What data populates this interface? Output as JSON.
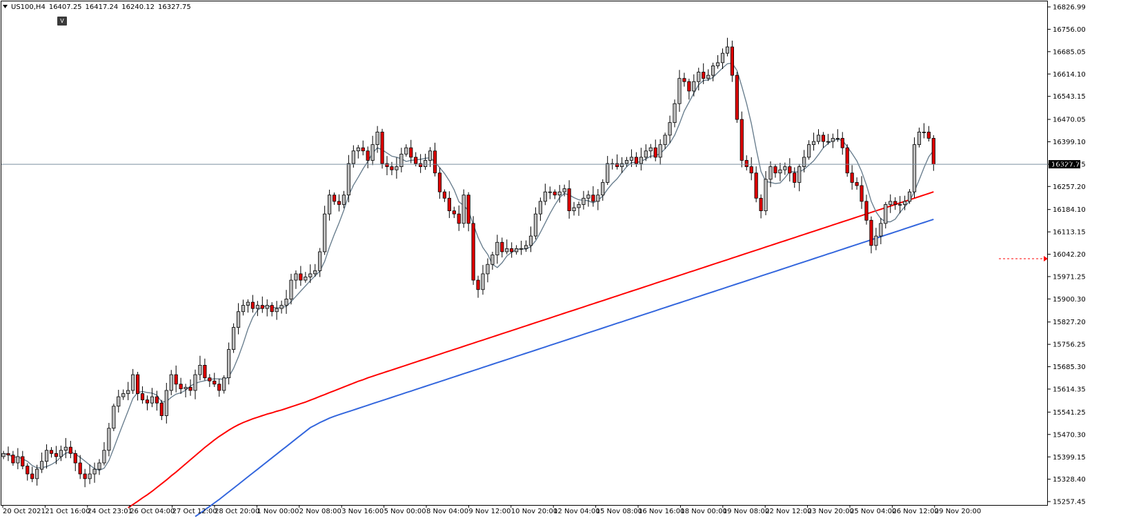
{
  "chart_data": {
    "type": "candlestick",
    "symbol_header": "US100,H4",
    "ohlc_header": {
      "open": "16407.25",
      "high": "16417.24",
      "low": "16240.12",
      "close": "16327.75"
    },
    "current_price_label": "16327.75",
    "v_badge": "V",
    "ylim": [
      15257.45,
      16826.99
    ],
    "y_ticks": [
      "16826.99",
      "16756.00",
      "16685.05",
      "16614.10",
      "16543.15",
      "16470.05",
      "16399.10",
      "16327.75",
      "16257.20",
      "16184.10",
      "16113.15",
      "16042.20",
      "15971.25",
      "15900.30",
      "15827.20",
      "15756.25",
      "15685.30",
      "15614.35",
      "15541.25",
      "15470.30",
      "15399.15",
      "15328.40",
      "15257.45"
    ],
    "x_ticks": [
      "20 Oct 2021",
      "21 Oct 16:00",
      "24 Oct 23:01",
      "26 Oct 04:00",
      "27 Oct 12:00",
      "28 Oct 20:00",
      "1 Nov 00:00",
      "2 Nov 08:00",
      "3 Nov 16:00",
      "5 Nov 00:00",
      "8 Nov 04:00",
      "9 Nov 12:00",
      "10 Nov 20:00",
      "12 Nov 04:00",
      "15 Nov 08:00",
      "16 Nov 16:00",
      "18 Nov 00:00",
      "19 Nov 08:00",
      "22 Nov 12:00",
      "23 Nov 20:00",
      "25 Nov 04:00",
      "26 Nov 12:00",
      "29 Nov 20:00"
    ],
    "closes": [
      15410,
      15405,
      15380,
      15400,
      15370,
      15345,
      15330,
      15360,
      15385,
      15420,
      15410,
      15400,
      15420,
      15430,
      15410,
      15380,
      15345,
      15330,
      15345,
      15360,
      15380,
      15420,
      15490,
      15560,
      15590,
      15600,
      15610,
      15660,
      15600,
      15580,
      15570,
      15590,
      15570,
      15530,
      15610,
      15660,
      15630,
      15615,
      15620,
      15610,
      15660,
      15690,
      15650,
      15640,
      15630,
      15610,
      15650,
      15740,
      15810,
      15860,
      15880,
      15890,
      15870,
      15880,
      15870,
      15880,
      15860,
      15870,
      15880,
      15900,
      15960,
      15980,
      15960,
      15970,
      15980,
      15990,
      16050,
      16170,
      16230,
      16210,
      16200,
      16230,
      16330,
      16370,
      16380,
      16370,
      16340,
      16390,
      16430,
      16330,
      16320,
      16310,
      16320,
      16360,
      16380,
      16350,
      16330,
      16320,
      16340,
      16370,
      16300,
      16240,
      16220,
      16180,
      16170,
      16140,
      16230,
      16140,
      15960,
      15930,
      15980,
      16010,
      16040,
      16080,
      16050,
      16060,
      16050,
      16060,
      16060,
      16070,
      16100,
      16170,
      16210,
      16240,
      16240,
      16230,
      16240,
      16250,
      16180,
      16190,
      16200,
      16220,
      16230,
      16210,
      16230,
      16270,
      16330,
      16330,
      16320,
      16330,
      16340,
      16350,
      16330,
      16350,
      16370,
      16380,
      16350,
      16390,
      16420,
      16460,
      16520,
      16600,
      16590,
      16560,
      16590,
      16620,
      16600,
      16610,
      16640,
      16650,
      16680,
      16700,
      16610,
      16470,
      16340,
      16320,
      16300,
      16220,
      16180,
      16280,
      16320,
      16300,
      16310,
      16320,
      16300,
      16270,
      16320,
      16350,
      16390,
      16400,
      16420,
      16400,
      16400,
      16410,
      16410,
      16380,
      16300,
      16270,
      16260,
      16210,
      16150,
      16070,
      16100,
      16140,
      16200,
      16210,
      16200,
      16200,
      16210,
      16240,
      16390,
      16430,
      16430,
      16410,
      16327.75
    ],
    "series": [
      {
        "name": "",
        "color": "#ff0000",
        "values": [
          15238,
          15248,
          15258,
          15269,
          15279,
          15290,
          15302,
          15314,
          15326,
          15339,
          15351,
          15364,
          15377,
          15390,
          15403,
          15416,
          15429,
          15441,
          15453,
          15464,
          15474,
          15484,
          15493,
          15501,
          15508,
          15514,
          15520,
          15525,
          15530,
          15535,
          15539,
          15544,
          15548,
          15553,
          15558,
          15563,
          15568,
          15573,
          15579,
          15585,
          15591,
          15597,
          15603,
          15609,
          15615,
          15621,
          15627,
          15633,
          15639,
          15644,
          15650,
          15655,
          15660,
          15665,
          15670,
          15675,
          15680,
          15685,
          15690,
          15695,
          15700,
          15705,
          15710,
          15715,
          15720,
          15725,
          15730,
          15735,
          15740,
          15745,
          15750,
          15755,
          15760,
          15765,
          15770,
          15775,
          15780,
          15785,
          15790,
          15795,
          15800,
          15805,
          15810,
          15815,
          15820,
          15825,
          15830,
          15835,
          15840,
          15845,
          15850,
          15855,
          15860,
          15865,
          15870,
          15875,
          15880,
          15885,
          15890,
          15895,
          15900,
          15905,
          15910,
          15915,
          15920,
          15925,
          15930,
          15935,
          15940,
          15945,
          15950,
          15955,
          15960,
          15965,
          15970,
          15975,
          15980,
          15985,
          15990,
          15995,
          16000,
          16005,
          16010,
          16015,
          16020,
          16025,
          16030,
          16035,
          16040,
          16045,
          16050,
          16055,
          16060,
          16065,
          16070,
          16075,
          16080,
          16085,
          16090,
          16095,
          16100,
          16105,
          16110,
          16115,
          16120,
          16125,
          16130,
          16135,
          16140,
          16145,
          16150,
          16155,
          16160,
          16165,
          16170,
          16175,
          16180,
          16185,
          16190,
          16195,
          16200,
          16205,
          16210,
          16215,
          16220,
          16225,
          16230,
          16235,
          16240
        ]
      },
      {
        "name": "",
        "color": "#3366dd",
        "values": [
          15210,
          15220,
          15231,
          15242,
          15253,
          15264,
          15276,
          15288,
          15300,
          15312,
          15324,
          15336,
          15348,
          15360,
          15372,
          15384,
          15396,
          15408,
          15420,
          15432,
          15444,
          15456,
          15468,
          15480,
          15492,
          15500,
          15508,
          15515,
          15522,
          15528,
          15533,
          15538,
          15543,
          15548,
          15553,
          15558,
          15563,
          15568,
          15573,
          15578,
          15583,
          15588,
          15593,
          15598,
          15603,
          15608,
          15613,
          15618,
          15623,
          15628,
          15633,
          15638,
          15643,
          15648,
          15653,
          15658,
          15663,
          15668,
          15673,
          15678,
          15683,
          15688,
          15693,
          15698,
          15703,
          15708,
          15713,
          15718,
          15723,
          15728,
          15733,
          15738,
          15743,
          15748,
          15753,
          15758,
          15763,
          15768,
          15773,
          15778,
          15783,
          15788,
          15793,
          15798,
          15803,
          15808,
          15813,
          15818,
          15823,
          15828,
          15833,
          15838,
          15843,
          15848,
          15853,
          15858,
          15863,
          15868,
          15873,
          15878,
          15883,
          15888,
          15893,
          15898,
          15903,
          15908,
          15913,
          15918,
          15923,
          15928,
          15933,
          15938,
          15943,
          15948,
          15953,
          15958,
          15963,
          15968,
          15973,
          15978,
          15983,
          15988,
          15993,
          15998,
          16003,
          16008,
          16013,
          16018,
          16023,
          16028,
          16033,
          16038,
          16043,
          16048,
          16053,
          16058,
          16063,
          16068,
          16073,
          16078,
          16083,
          16088,
          16093,
          16098,
          16103,
          16108,
          16113,
          16118,
          16123,
          16128,
          16133,
          16138,
          16143,
          16148,
          16153
        ]
      }
    ]
  }
}
